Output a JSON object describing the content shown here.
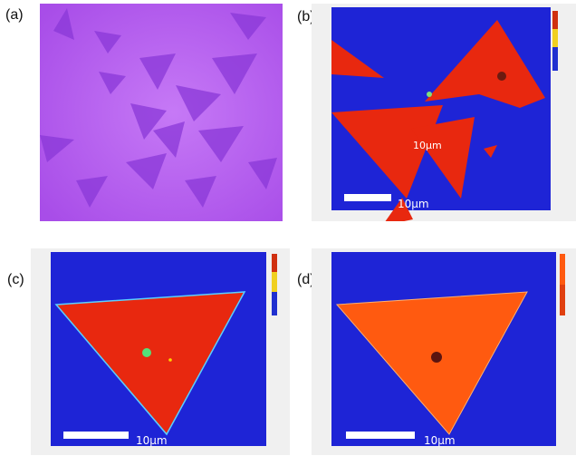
{
  "panels": [
    {
      "label": "(a)"
    },
    {
      "label": "(b)",
      "scalebar_text": "10µm",
      "annotation": "10µm"
    },
    {
      "label": "(c)",
      "scalebar_text": "10µm"
    },
    {
      "label": "(d)",
      "scalebar_text": "10µm"
    }
  ],
  "colors": {
    "optical_bg": "#b35cf0",
    "map_bg": "#1e24d6",
    "map_red": "#e8280f",
    "map_orange": "#ff5a10"
  }
}
